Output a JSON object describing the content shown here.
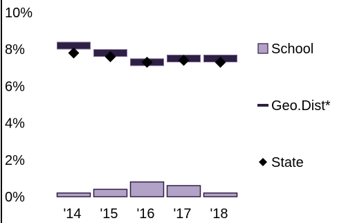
{
  "chart_data": {
    "type": "bar",
    "categories": [
      "'14",
      "'15",
      "'16",
      "'17",
      "'18"
    ],
    "series": [
      {
        "name": "School",
        "kind": "bar",
        "color": "#b3a2c7",
        "values": [
          0.2,
          0.4,
          0.8,
          0.6,
          0.2
        ]
      },
      {
        "name": "Geo.Dist*",
        "kind": "dash",
        "color": "#2e1f44",
        "values": [
          8.2,
          7.8,
          7.3,
          7.5,
          7.5
        ]
      },
      {
        "name": "State",
        "kind": "diamond",
        "color": "#000000",
        "values": [
          7.8,
          7.6,
          7.3,
          7.4,
          7.3
        ]
      }
    ],
    "yticks": [
      "0%",
      "2%",
      "4%",
      "6%",
      "8%",
      "10%"
    ],
    "ylim": [
      0,
      10
    ],
    "title": "",
    "xlabel": "",
    "ylabel": "",
    "legend_position": "right",
    "grid": false
  }
}
